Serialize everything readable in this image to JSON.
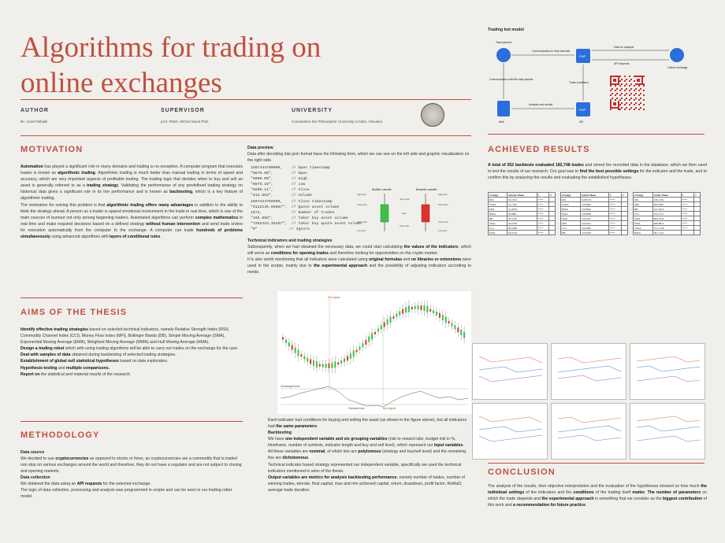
{
  "poster": {
    "title_line1": "Algorithms for trading on",
    "title_line2": "online exchanges"
  },
  "meta": {
    "author_label": "AUTHOR",
    "author_value": "Bc. Jozef Mihalik",
    "supervisor_label": "SUPERVISOR",
    "supervisor_value": "prof. RNDr. Michal Munk PhD.",
    "university_label": "UNIVERSITY",
    "university_value": "Constantine the Philosopher University in Nitra, Slovakia"
  },
  "motivation": {
    "heading": "MOTIVATION",
    "p1_a": "Automation",
    "p1_b": " has played a significant role in many domains and trading is no exception. A computer program that executes trades is known as ",
    "p1_c": "algorithmic trading",
    "p1_d": ". Algorithmic trading is much better than manual trading in terms of speed and accuracy, which are very important aspects of profitable trading. The trading logic that decides when to buy and sell an asset is generally referred to as a ",
    "p1_e": "trading strategy",
    "p1_f": ". Validating the performance of any predefined trading strategy on historical data gives a significant role in its live performance and is known as ",
    "p1_g": "backtesting",
    "p1_h": ", which is a key feature of algorithmic trading.",
    "p2_a": "The motivation for solving this problem is that ",
    "p2_b": "algorithmic trading offers many advantages",
    "p2_c": " in addition to the ability to think the strategy ahead. A person as a trader is spared emotional involvement in the trade in real time, which is one of the main sources of burnout not only among beginning traders. Automated algorithms can perform ",
    "p2_d": "complex mathematics",
    "p2_e": " in real time and make required decisions based on a defined strategy ",
    "p2_f": "without human intervention",
    "p2_g": " and send trade orders for execution automatically from the computer to the exchange. A computer can trade ",
    "p2_h": "hundreds of problems simultaneously",
    "p2_i": " using advanced algorithms with ",
    "p2_j": "layers of conditional rules",
    "p2_k": "."
  },
  "aims": {
    "heading": "AIMS OF THE THESIS",
    "a1_b": "Identify effective trading strategies",
    "a1_r": " based on selected technical indicators, namely Relative Strength Index (RSI), Commodity Channel Index (CCI), Money Flow Index (MFI), Bollinger Bands (BB), Simple Moving Average (SMA), Exponential Moving Average (EMA), Weighted Moving Average (WMA) and Hull Moving Average (HMA).",
    "a2_b": "Design a trading robot",
    "a2_r": " which with using trading algorithms will be able to carry out trades on the exchange for the user.",
    "a3_b": "Deal with samples of data",
    "a3_r": " obtained during backtesting of selected trading strategies.",
    "a4_b": "Establishment of global null statistical hypotheses",
    "a4_r": " based on data exploration.",
    "a5_b": "Hypothesis testing",
    "a5_m": " and ",
    "a5_b2": "multiple comparisons.",
    "a6_b": "Report on",
    "a6_r": " the statistical and material results of the research."
  },
  "methodology": {
    "heading": "METHODOLOGY",
    "s1": "Data source",
    "s1_a": "We decided to use ",
    "s1_b": "cryptocurrencies",
    "s1_c": " as opposed to stocks or forex, as cryptocurrencies are a commodity that is traded non stop on various exchanges around the world and therefore, they do not have a regulator and are not subject to closing and opening markets.",
    "s2": "Data collection",
    "s2_a": "We obtained the data using an ",
    "s2_b": "API requests",
    "s2_c": " for the selected exchange.",
    "s2_d": "The logic of data collection, processing and analysis was programmed in scripts and can be seen in our trading robot model."
  },
  "preview": {
    "heading": "Data preview",
    "intro": "Data after decoding into json format have the following form, which we can see on the left side and graphic visualization on the right side.",
    "json_lines": [
      "1607444700000,    // Open timestamp",
      "\"8879.99\",        // Open",
      "\"8900.00\",        // High",
      "\"8876.18\",        // Low",
      "\"8896.11\",        // Close",
      "\"412.563\",        // Volume",
      "1607444759999,    // Close timestamp",
      "\"9122145.66087\",  // Quote asset volume",
      "1874,             // Number of trades",
      "\"165.958\",        // Taker buy asset volume",
      "\"7292422.35267\",  // Taker buy quote asset volume",
      "\"0\"              // Ignore"
    ],
    "bullish_label": "Bullish candle",
    "bearish_label": "Bearish candle",
    "hp": "High price",
    "cp": "Close price",
    "op": "Open price",
    "lp": "Low price",
    "upper_wick": "upper wick",
    "body": "body",
    "lower_wick": "lower wick"
  },
  "indicators": {
    "heading": "Technical indicators and trading strategies",
    "t1": "Subsequently, when we had obtained the necessary data, we could start calculating ",
    "t1_b": "the values of the indicators",
    "t1_c": ", which will serve as ",
    "t1_d": "conditions for opening trades",
    "t1_e": " and therefore looking for opportunities on the crypto market.",
    "t2": "It is also worth mentioning that all indicators were calculated using ",
    "t2_b": "original formulas",
    "t2_c": " and ",
    "t2_d": "no libraries or extensions",
    "t2_e": " were used in the scripts, mainly due to ",
    "t2_f": "the experimental approach",
    "t2_g": " and the possibility of adjusting indicators according to needs.",
    "sell_signal": "Sell signal",
    "buy_signal": "Buy signal",
    "overbought": "Overbought zone",
    "oversold": "Oversold zone"
  },
  "backtesting": {
    "pre": "Each indicator had conditions for buying and selling the asset (as shown in the figure above), but all indicators had ",
    "pre_b": "the same parameters",
    "pre_c": ".",
    "heading": "Backtesting",
    "b1": "We have ",
    "b1_b": "one independent variable and six grouping variables",
    "b1_c": " (risk to reward ratio, budget risk in %, timeframe, number of symbols, indicator length and buy and sell level), which represent our ",
    "b1_d": "input variables",
    "b1_e": ".",
    "b2": "All these variables are ",
    "b2_b": "nominal",
    "b2_c": ", of which two are ",
    "b2_d": "polytomous",
    "b2_e": " (strategy and buy/sell level) and the remaining five are ",
    "b2_f": "dichotomous",
    "b2_g": ".",
    "b3": "Technical indicator based strategy represented our independent variable, specifically we used the technical indicators mentioned in aims of the thesis.",
    "b4_b": "Output variables are metrics for analysis backtesting performance",
    "b4_c": ", namely number of trades, number of winning trades, winrate, final capital, max and min achieved capital, return, drawdown, profit factor, RoMaD, average trade duration."
  },
  "model": {
    "heading": "Trading bot model",
    "task_planner": "Task planner",
    "comm_time": "Communication in time intervals",
    "data_analysis": "Data for analysis",
    "api_requests": "API requests",
    "online_exchange": "Online exchange",
    "comm_planner": "Communication with the task planner",
    "trade_conditions": "Trade conditions",
    "analysis_results": "Analysis and results",
    "web": "Web",
    "php": "PHP",
    "db": "DB"
  },
  "results": {
    "heading": "ACHIEVED RESULTS",
    "r1": "A total of 352 backtests evaluated 182,748 trades",
    "r2": " and stored the recorded data in the database, which we then used to test the results of our research. Our goal was to ",
    "r3": "find the best possible settings",
    "r4": " for the indicator and the trade, and to confirm this by analyzing the results and evaluating the established hypotheses.",
    "tables": [
      {
        "h": [
          "strategy",
          "winrate Mean",
          "1",
          "2"
        ],
        "rows": [
          [
            "RSI",
            "34.1952",
            "****",
            ""
          ],
          [
            "WMA",
            "31.1340",
            "****",
            ""
          ],
          [
            "MFI",
            "31.9878",
            "****",
            ""
          ],
          [
            "HMA",
            "30.8881",
            "****",
            ""
          ],
          [
            "BB",
            "30.5120",
            "****",
            ""
          ],
          [
            "SMA",
            "30.0798",
            "****",
            ""
          ],
          [
            "CCI",
            "29.6589",
            "****",
            ""
          ],
          [
            "EMA",
            "29.0519",
            "****",
            ""
          ]
        ]
      },
      {
        "h": [
          "strategy",
          "return Mean",
          "1",
          "2"
        ],
        "rows": [
          [
            "RSI",
            "0.003535",
            "****",
            ""
          ],
          [
            "WMA",
            "-0.00606",
            "****",
            ""
          ],
          [
            "HMA",
            "-0.00856",
            "****",
            ""
          ],
          [
            "EMA",
            "-0.00998",
            "****",
            ""
          ],
          [
            "SMA",
            "-0.01447",
            "****",
            ""
          ],
          [
            "MFI",
            "-0.01922",
            "****",
            ""
          ],
          [
            "CCI",
            "-0.02069",
            "****",
            ""
          ],
          [
            "BB",
            "-0.02248",
            "****",
            ""
          ]
        ]
      },
      {
        "h": [
          "strategy",
          "trades Mean",
          "1",
          "2"
        ],
        "rows": [
          [
            "RSI",
            "239.1591",
            "****",
            ""
          ],
          [
            "MFI",
            "382.4681",
            "****",
            ""
          ],
          [
            "BB",
            "431.4615",
            "****",
            ""
          ],
          [
            "CCI",
            "534.1517",
            "****",
            ""
          ],
          [
            "SMA",
            "609.4545",
            "****",
            ""
          ],
          [
            "EMA",
            "686.8813",
            "****",
            ""
          ],
          [
            "WMA",
            "752.7158",
            "****",
            ""
          ],
          [
            "HMA",
            "901.1122",
            "",
            ""
          ]
        ]
      }
    ]
  },
  "conclusion": {
    "heading": "CONCLUSION",
    "c1": "The analysis of the results, their objective interpretation and the evaluation of the hypotheses showed us how much ",
    "c2": "the individual settings",
    "c3": " of the indicators and the ",
    "c4": "conditions",
    "c5": " of the trading itself ",
    "c6": "matter",
    "c7": ". ",
    "c8": "The number of parameters",
    "c9": " on which the trade depends and ",
    "c10": "the experimental approach",
    "c11": " is something that we consider as the ",
    "c12": "biggest contribution",
    "c13": " of this work and ",
    "c14": "a recommendation for future practice",
    "c15": "."
  },
  "colors": {
    "accent": "#c0503f",
    "bull": "#3fbf4a",
    "bear": "#e0312a"
  }
}
